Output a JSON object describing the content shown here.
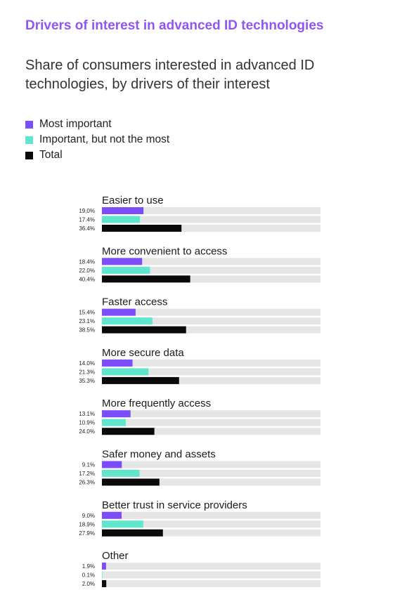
{
  "colors": {
    "title": "#8f57f0",
    "most_important": "#7c4dfa",
    "important": "#5ee7cc",
    "total": "#0a0a0a",
    "track": "#e5e5e5"
  },
  "title": "Drivers of interest in advanced ID technologies",
  "subtitle": "Share of consumers interested in advanced ID technologies, by drivers of their interest",
  "legend": [
    {
      "label": "Most important",
      "color": "#7c4dfa"
    },
    {
      "label": "Important, but not the most",
      "color": "#5ee7cc"
    },
    {
      "label": "Total",
      "color": "#0a0a0a"
    }
  ],
  "chart_data": {
    "type": "bar",
    "orientation": "horizontal",
    "xlim": [
      0,
      100
    ],
    "grid": false,
    "legend_position": "top-left",
    "categories": [
      "Easier to use",
      "More convenient to access",
      "Faster access",
      "More secure data",
      "More frequently access",
      "Safer money and assets",
      "Better trust in service providers",
      "Other"
    ],
    "series": [
      {
        "name": "Most important",
        "values": [
          19.0,
          18.4,
          15.4,
          14.0,
          13.1,
          9.1,
          9.0,
          1.9
        ],
        "labels": [
          "19,0%",
          "18.4%",
          "15.4%",
          "14.0%",
          "13.1%",
          "9.1%",
          "9.0%",
          "1.9%"
        ]
      },
      {
        "name": "Important, but not the most",
        "values": [
          17.4,
          22.0,
          23.1,
          21.3,
          10.9,
          17.2,
          18.9,
          0.1
        ],
        "labels": [
          "17.4%",
          "22.0%",
          "23.1%",
          "21.3%",
          "10.9%",
          "17.2%",
          "18.9%",
          "0.1%"
        ]
      },
      {
        "name": "Total",
        "values": [
          36.4,
          40.4,
          38.5,
          35.3,
          24.0,
          26.3,
          27.9,
          2.0
        ],
        "labels": [
          "36.4%",
          "40.4%",
          "38.5%",
          "35.3%",
          "24.0%",
          "26.3%",
          "27.9%",
          "2.0%"
        ]
      }
    ]
  }
}
